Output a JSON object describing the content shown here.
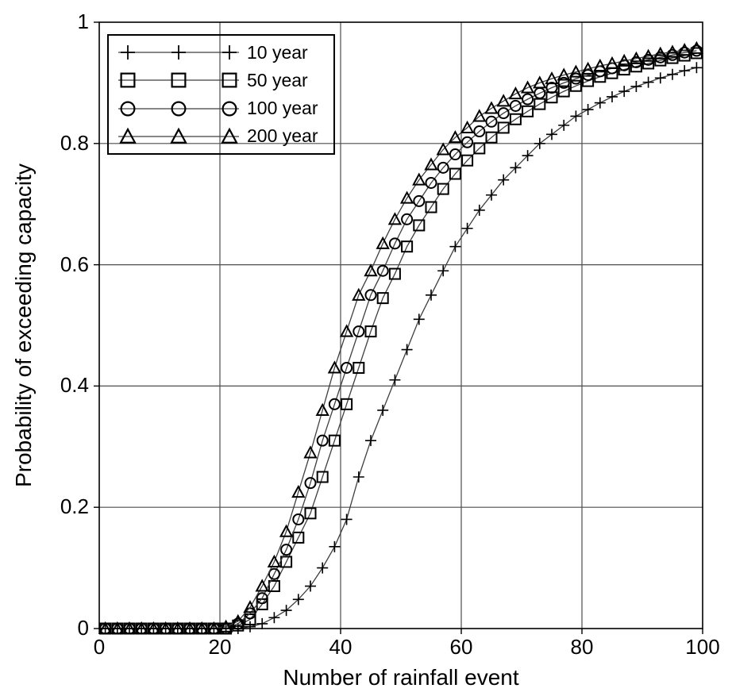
{
  "figure": {
    "background": "#ffffff"
  },
  "chart_data": {
    "type": "line",
    "title": "",
    "xlabel": "Number of rainfall event",
    "ylabel": "Probability of exceeding capacity",
    "xlim": [
      0,
      100
    ],
    "ylim": [
      0,
      1
    ],
    "xticks": [
      0,
      20,
      40,
      60,
      80,
      100
    ],
    "yticks": [
      0,
      0.2,
      0.4,
      0.6,
      0.8,
      1
    ],
    "xtick_labels": [
      "0",
      "20",
      "40",
      "60",
      "80",
      "100"
    ],
    "ytick_labels": [
      "0",
      "0.2",
      "0.4",
      "0.6",
      "0.8",
      "1"
    ],
    "grid": true,
    "legend_position": "top-left",
    "colors": {
      "background": "#ffffff",
      "axis": "#000000",
      "grid": "#4d4d4d",
      "line": "#3f3f3f",
      "marker": "#000000",
      "text": "#000000"
    },
    "x": [
      1,
      3,
      5,
      7,
      9,
      11,
      13,
      15,
      17,
      19,
      21,
      23,
      25,
      27,
      29,
      31,
      33,
      35,
      37,
      39,
      41,
      43,
      45,
      47,
      49,
      51,
      53,
      55,
      57,
      59,
      61,
      63,
      65,
      67,
      69,
      71,
      73,
      75,
      77,
      79,
      81,
      83,
      85,
      87,
      89,
      91,
      93,
      95,
      97,
      99
    ],
    "series": [
      {
        "name": "10 year",
        "marker": "plus",
        "values": [
          0,
          0,
          0,
          0,
          0,
          0,
          0,
          0,
          0,
          0,
          0,
          0,
          0.003,
          0.008,
          0.018,
          0.03,
          0.048,
          0.07,
          0.1,
          0.135,
          0.18,
          0.25,
          0.31,
          0.36,
          0.41,
          0.46,
          0.51,
          0.55,
          0.59,
          0.63,
          0.66,
          0.69,
          0.715,
          0.74,
          0.76,
          0.78,
          0.8,
          0.815,
          0.83,
          0.845,
          0.856,
          0.867,
          0.877,
          0.886,
          0.894,
          0.901,
          0.908,
          0.914,
          0.92,
          0.925
        ]
      },
      {
        "name": "50 year",
        "marker": "square",
        "values": [
          0,
          0,
          0,
          0,
          0,
          0,
          0,
          0,
          0,
          0,
          0,
          0.005,
          0.015,
          0.04,
          0.07,
          0.11,
          0.15,
          0.19,
          0.25,
          0.31,
          0.37,
          0.43,
          0.49,
          0.545,
          0.585,
          0.63,
          0.665,
          0.695,
          0.725,
          0.75,
          0.772,
          0.792,
          0.81,
          0.826,
          0.84,
          0.853,
          0.865,
          0.876,
          0.886,
          0.895,
          0.903,
          0.91,
          0.916,
          0.922,
          0.927,
          0.932,
          0.937,
          0.941,
          0.945,
          0.949
        ]
      },
      {
        "name": "100 year",
        "marker": "circle",
        "values": [
          0,
          0,
          0,
          0,
          0,
          0,
          0,
          0,
          0,
          0,
          0,
          0.008,
          0.025,
          0.05,
          0.09,
          0.13,
          0.18,
          0.24,
          0.31,
          0.37,
          0.43,
          0.49,
          0.55,
          0.59,
          0.635,
          0.675,
          0.705,
          0.735,
          0.76,
          0.782,
          0.802,
          0.82,
          0.836,
          0.85,
          0.862,
          0.873,
          0.883,
          0.892,
          0.9,
          0.907,
          0.913,
          0.919,
          0.924,
          0.929,
          0.934,
          0.938,
          0.942,
          0.946,
          0.95,
          0.953
        ]
      },
      {
        "name": "200 year",
        "marker": "triangle",
        "values": [
          0,
          0,
          0,
          0,
          0,
          0,
          0,
          0,
          0,
          0,
          0.003,
          0.012,
          0.035,
          0.07,
          0.11,
          0.16,
          0.225,
          0.29,
          0.36,
          0.43,
          0.49,
          0.55,
          0.59,
          0.635,
          0.675,
          0.71,
          0.74,
          0.765,
          0.79,
          0.81,
          0.826,
          0.845,
          0.858,
          0.87,
          0.882,
          0.892,
          0.9,
          0.907,
          0.913,
          0.918,
          0.923,
          0.928,
          0.932,
          0.936,
          0.94,
          0.944,
          0.948,
          0.951,
          0.954,
          0.957
        ]
      }
    ]
  }
}
